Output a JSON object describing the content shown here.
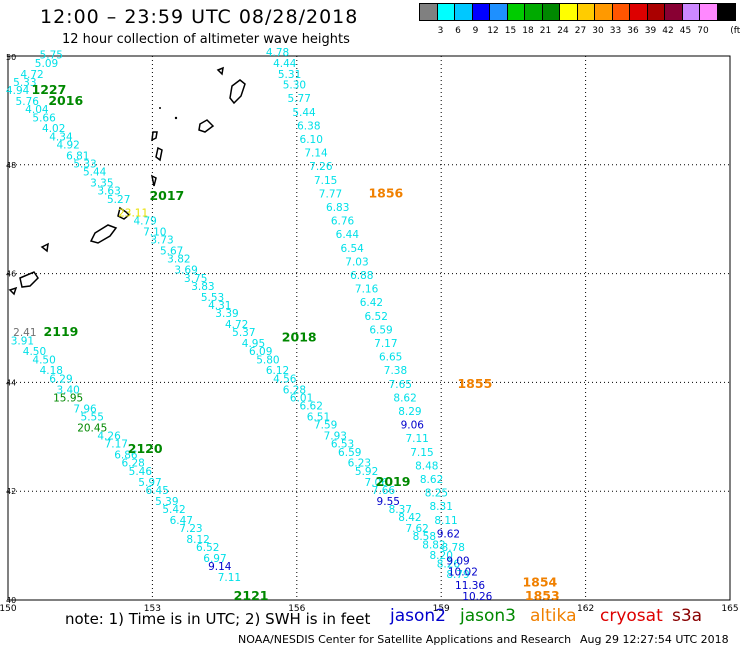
{
  "header": {
    "title": "12:00 – 23:59 UTC 08/28/2018",
    "subtitle": "12 hour collection of altimeter wave heights"
  },
  "scale": {
    "unit": "(ft)",
    "labels": [
      "3",
      "6",
      "9",
      "12",
      "15",
      "18",
      "21",
      "24",
      "27",
      "30",
      "33",
      "36",
      "39",
      "42",
      "45",
      "70"
    ],
    "colors": [
      "#808080",
      "#00ffff",
      "#00c8ff",
      "#0000ff",
      "#1e90ff",
      "#00cc00",
      "#00aa00",
      "#008800",
      "#ffff00",
      "#ffcc00",
      "#ff9900",
      "#ff5500",
      "#dd0000",
      "#aa0000",
      "#880033",
      "#cc88ff",
      "#ff88ff",
      "#000000"
    ]
  },
  "map": {
    "lat_labels": [
      "50",
      "48",
      "46",
      "44",
      "42",
      "40"
    ],
    "lon_labels": [
      "150",
      "153",
      "156",
      "159",
      "162",
      "165"
    ],
    "colors": {
      "cyan": "#00e0e8",
      "blue": "#0000cc",
      "green": "#008800",
      "orange": "#f08000",
      "yellow": "#e8e000",
      "gray": "#707070"
    },
    "tracks": [
      {
        "color": "cyan",
        "points": [
          {
            "text": "5.75",
            "lon": 150.9,
            "lat": 49.95
          },
          {
            "text": "5.09",
            "lon": 150.8,
            "lat": 49.8
          },
          {
            "text": "4.72",
            "lon": 150.5,
            "lat": 49.6
          },
          {
            "text": "5.33",
            "lon": 150.35,
            "lat": 49.45
          },
          {
            "text": "4.94",
            "lon": 150.2,
            "lat": 49.3
          },
          {
            "text": "5.76",
            "lon": 150.4,
            "lat": 49.1
          },
          {
            "text": "4.04",
            "lon": 150.6,
            "lat": 48.95
          },
          {
            "text": "5.66",
            "lon": 150.75,
            "lat": 48.8
          },
          {
            "text": "4.02",
            "lon": 150.95,
            "lat": 48.6
          },
          {
            "text": "4.34",
            "lon": 151.1,
            "lat": 48.45
          },
          {
            "text": "4.92",
            "lon": 151.25,
            "lat": 48.3
          },
          {
            "text": "6.81",
            "lon": 151.45,
            "lat": 48.1
          },
          {
            "text": "5.33",
            "lon": 151.6,
            "lat": 47.95
          },
          {
            "text": "5.44",
            "lon": 151.8,
            "lat": 47.8
          },
          {
            "text": "3.35",
            "lon": 151.95,
            "lat": 47.6
          },
          {
            "text": "3.63",
            "lon": 152.1,
            "lat": 47.45
          },
          {
            "text": "5.27",
            "lon": 152.3,
            "lat": 47.3
          },
          {
            "text": "4.79",
            "lon": 152.85,
            "lat": 46.9
          },
          {
            "text": "7.10",
            "lon": 153.05,
            "lat": 46.7
          },
          {
            "text": "3.73",
            "lon": 153.2,
            "lat": 46.55
          },
          {
            "text": "5.67",
            "lon": 153.4,
            "lat": 46.35
          },
          {
            "text": "3.82",
            "lon": 153.55,
            "lat": 46.2
          },
          {
            "text": "3.69",
            "lon": 153.7,
            "lat": 46.0
          },
          {
            "text": "3.75",
            "lon": 153.9,
            "lat": 45.85
          },
          {
            "text": "3.83",
            "lon": 154.05,
            "lat": 45.7
          },
          {
            "text": "5.53",
            "lon": 154.25,
            "lat": 45.5
          },
          {
            "text": "4.31",
            "lon": 154.4,
            "lat": 45.35
          },
          {
            "text": "3.39",
            "lon": 154.55,
            "lat": 45.2
          },
          {
            "text": "4.72",
            "lon": 154.75,
            "lat": 45.0
          },
          {
            "text": "5.37",
            "lon": 154.9,
            "lat": 44.85
          },
          {
            "text": "4.95",
            "lon": 155.1,
            "lat": 44.65
          },
          {
            "text": "6.09",
            "lon": 155.25,
            "lat": 44.5
          },
          {
            "text": "5.80",
            "lon": 155.4,
            "lat": 44.35
          },
          {
            "text": "6.12",
            "lon": 155.6,
            "lat": 44.15
          },
          {
            "text": "4.56",
            "lon": 155.75,
            "lat": 44.0
          },
          {
            "text": "6.28",
            "lon": 155.95,
            "lat": 43.8
          },
          {
            "text": "6.01",
            "lon": 156.1,
            "lat": 43.65
          },
          {
            "text": "6.62",
            "lon": 156.3,
            "lat": 43.5
          },
          {
            "text": "6.51",
            "lon": 156.45,
            "lat": 43.3
          },
          {
            "text": "7.59",
            "lon": 156.6,
            "lat": 43.15
          },
          {
            "text": "7.93",
            "lon": 156.8,
            "lat": 42.95
          },
          {
            "text": "6.53",
            "lon": 156.95,
            "lat": 42.8
          },
          {
            "text": "6.59",
            "lon": 157.1,
            "lat": 42.65
          },
          {
            "text": "6.23",
            "lon": 157.3,
            "lat": 42.45
          },
          {
            "text": "5.92",
            "lon": 157.45,
            "lat": 42.3
          },
          {
            "text": "7.06",
            "lon": 157.65,
            "lat": 42.1
          },
          {
            "text": "7.66",
            "lon": 157.8,
            "lat": 41.95
          },
          {
            "text": "8.37",
            "lon": 158.15,
            "lat": 41.6
          },
          {
            "text": "8.42",
            "lon": 158.35,
            "lat": 41.45
          },
          {
            "text": "7.62",
            "lon": 158.5,
            "lat": 41.25
          },
          {
            "text": "8.58",
            "lon": 158.65,
            "lat": 41.1
          },
          {
            "text": "8.82",
            "lon": 158.85,
            "lat": 40.95
          },
          {
            "text": "8.20",
            "lon": 159.0,
            "lat": 40.75
          },
          {
            "text": "8.26",
            "lon": 159.15,
            "lat": 40.6
          },
          {
            "text": "8.79",
            "lon": 159.35,
            "lat": 40.4
          }
        ]
      },
      {
        "color": "cyan",
        "points": [
          {
            "text": "4.78",
            "lon": 155.6,
            "lat": 50.0
          },
          {
            "text": "4.44",
            "lon": 155.75,
            "lat": 49.8
          },
          {
            "text": "5.31",
            "lon": 155.85,
            "lat": 49.6
          },
          {
            "text": "5.30",
            "lon": 155.95,
            "lat": 49.4
          },
          {
            "text": "5.77",
            "lon": 156.05,
            "lat": 49.15
          },
          {
            "text": "5.44",
            "lon": 156.15,
            "lat": 48.9
          },
          {
            "text": "6.38",
            "lon": 156.25,
            "lat": 48.65
          },
          {
            "text": "6.10",
            "lon": 156.3,
            "lat": 48.4
          },
          {
            "text": "7.14",
            "lon": 156.4,
            "lat": 48.15
          },
          {
            "text": "7.26",
            "lon": 156.5,
            "lat": 47.9
          },
          {
            "text": "7.15",
            "lon": 156.6,
            "lat": 47.65
          },
          {
            "text": "7.77",
            "lon": 156.7,
            "lat": 47.4
          },
          {
            "text": "6.83",
            "lon": 156.85,
            "lat": 47.15
          },
          {
            "text": "6.76",
            "lon": 156.95,
            "lat": 46.9
          },
          {
            "text": "6.44",
            "lon": 157.05,
            "lat": 46.65
          },
          {
            "text": "6.54",
            "lon": 157.15,
            "lat": 46.4
          },
          {
            "text": "7.03",
            "lon": 157.25,
            "lat": 46.15
          },
          {
            "text": "6.88",
            "lon": 157.35,
            "lat": 45.9
          },
          {
            "text": "7.16",
            "lon": 157.45,
            "lat": 45.65
          },
          {
            "text": "6.42",
            "lon": 157.55,
            "lat": 45.4
          },
          {
            "text": "6.52",
            "lon": 157.65,
            "lat": 45.15
          },
          {
            "text": "6.59",
            "lon": 157.75,
            "lat": 44.9
          },
          {
            "text": "7.17",
            "lon": 157.85,
            "lat": 44.65
          },
          {
            "text": "6.65",
            "lon": 157.95,
            "lat": 44.4
          },
          {
            "text": "7.38",
            "lon": 158.05,
            "lat": 44.15
          },
          {
            "text": "7.65",
            "lon": 158.15,
            "lat": 43.9
          },
          {
            "text": "8.62",
            "lon": 158.25,
            "lat": 43.65
          },
          {
            "text": "8.29",
            "lon": 158.35,
            "lat": 43.4
          },
          {
            "text": "7.11",
            "lon": 158.5,
            "lat": 42.9
          },
          {
            "text": "7.15",
            "lon": 158.6,
            "lat": 42.65
          },
          {
            "text": "8.48",
            "lon": 158.7,
            "lat": 42.4
          },
          {
            "text": "8.62",
            "lon": 158.8,
            "lat": 42.15
          },
          {
            "text": "8.25",
            "lon": 158.9,
            "lat": 41.9
          },
          {
            "text": "8.31",
            "lon": 159.0,
            "lat": 41.65
          },
          {
            "text": "8.11",
            "lon": 159.1,
            "lat": 41.4
          },
          {
            "text": "8.78",
            "lon": 159.25,
            "lat": 40.9
          }
        ]
      },
      {
        "color": "cyan",
        "points": [
          {
            "text": "3.91",
            "lon": 150.3,
            "lat": 44.7
          },
          {
            "text": "4.50",
            "lon": 150.55,
            "lat": 44.5
          },
          {
            "text": "4.50",
            "lon": 150.75,
            "lat": 44.35
          },
          {
            "text": "4.18",
            "lon": 150.9,
            "lat": 44.15
          },
          {
            "text": "6.29",
            "lon": 151.1,
            "lat": 44.0
          },
          {
            "text": "3.40",
            "lon": 151.25,
            "lat": 43.8
          },
          {
            "text": "7.96",
            "lon": 151.6,
            "lat": 43.45
          },
          {
            "text": "5.55",
            "lon": 151.75,
            "lat": 43.3
          },
          {
            "text": "4.26",
            "lon": 152.1,
            "lat": 42.95
          },
          {
            "text": "7.17",
            "lon": 152.25,
            "lat": 42.8
          },
          {
            "text": "6.86",
            "lon": 152.45,
            "lat": 42.6
          },
          {
            "text": "6.28",
            "lon": 152.6,
            "lat": 42.45
          },
          {
            "text": "5.46",
            "lon": 152.75,
            "lat": 42.3
          },
          {
            "text": "5.97",
            "lon": 152.95,
            "lat": 42.1
          },
          {
            "text": "6.45",
            "lon": 153.1,
            "lat": 41.95
          },
          {
            "text": "5.39",
            "lon": 153.3,
            "lat": 41.75
          },
          {
            "text": "5.42",
            "lon": 153.45,
            "lat": 41.6
          },
          {
            "text": "6.47",
            "lon": 153.6,
            "lat": 41.4
          },
          {
            "text": "7.23",
            "lon": 153.8,
            "lat": 41.25
          },
          {
            "text": "8.12",
            "lon": 153.95,
            "lat": 41.05
          },
          {
            "text": "6.52",
            "lon": 154.15,
            "lat": 40.9
          },
          {
            "text": "6.97",
            "lon": 154.3,
            "lat": 40.7
          },
          {
            "text": "7.11",
            "lon": 154.6,
            "lat": 40.35
          }
        ]
      },
      {
        "color": "green",
        "points": [
          {
            "text": "15.95",
            "lon": 151.25,
            "lat": 43.65
          },
          {
            "text": "20.45",
            "lon": 151.75,
            "lat": 43.1
          }
        ]
      },
      {
        "color": "yellow",
        "points": [
          {
            "text": "23.11",
            "lon": 152.6,
            "lat": 47.05
          }
        ]
      },
      {
        "color": "gray",
        "points": [
          {
            "text": "2.41",
            "lon": 150.35,
            "lat": 44.85
          }
        ]
      },
      {
        "color": "blue",
        "points": [
          {
            "text": "9.06",
            "lon": 158.4,
            "lat": 43.15
          },
          {
            "text": "9.55",
            "lon": 157.9,
            "lat": 41.75
          },
          {
            "text": "9.62",
            "lon": 159.15,
            "lat": 41.15
          },
          {
            "text": "9.09",
            "lon": 159.35,
            "lat": 40.65
          },
          {
            "text": "10.02",
            "lon": 159.45,
            "lat": 40.45
          },
          {
            "text": "11.36",
            "lon": 159.6,
            "lat": 40.2
          },
          {
            "text": "10.26",
            "lon": 159.75,
            "lat": 40.0
          },
          {
            "text": "9.14",
            "lon": 154.4,
            "lat": 40.55
          }
        ]
      }
    ],
    "time_labels": [
      {
        "text": "1227",
        "lon": 150.85,
        "lat": 49.3,
        "color": "green"
      },
      {
        "text": "2016",
        "lon": 151.2,
        "lat": 49.1,
        "color": "green"
      },
      {
        "text": "2017",
        "lon": 153.3,
        "lat": 47.35,
        "color": "green"
      },
      {
        "text": "1856",
        "lon": 157.85,
        "lat": 47.4,
        "color": "orange"
      },
      {
        "text": "2119",
        "lon": 151.1,
        "lat": 44.85,
        "color": "green"
      },
      {
        "text": "2018",
        "lon": 156.05,
        "lat": 44.75,
        "color": "green"
      },
      {
        "text": "1855",
        "lon": 159.7,
        "lat": 43.9,
        "color": "orange"
      },
      {
        "text": "2120",
        "lon": 152.85,
        "lat": 42.7,
        "color": "green"
      },
      {
        "text": "2019",
        "lon": 158.0,
        "lat": 42.1,
        "color": "green"
      },
      {
        "text": "1854",
        "lon": 161.05,
        "lat": 40.25,
        "color": "orange"
      },
      {
        "text": "1853",
        "lon": 161.1,
        "lat": 40.0,
        "color": "orange"
      },
      {
        "text": "2121",
        "lon": 155.05,
        "lat": 40.0,
        "color": "green"
      }
    ]
  },
  "footer": {
    "note": "note:  1) Time is in UTC;  2) SWH is in feet",
    "missions": [
      {
        "name": "jason2",
        "color": "#0000cc"
      },
      {
        "name": "jason3",
        "color": "#008800"
      },
      {
        "name": "altika",
        "color": "#f08000"
      },
      {
        "name": "cryosat",
        "color": "#dd0000"
      },
      {
        "name": "s3a",
        "color": "#880000"
      }
    ],
    "credit": "NOAA/NESDIS Center for Satellite Applications and Research",
    "timestamp": "Aug 29 12:27:54 UTC 2018"
  }
}
